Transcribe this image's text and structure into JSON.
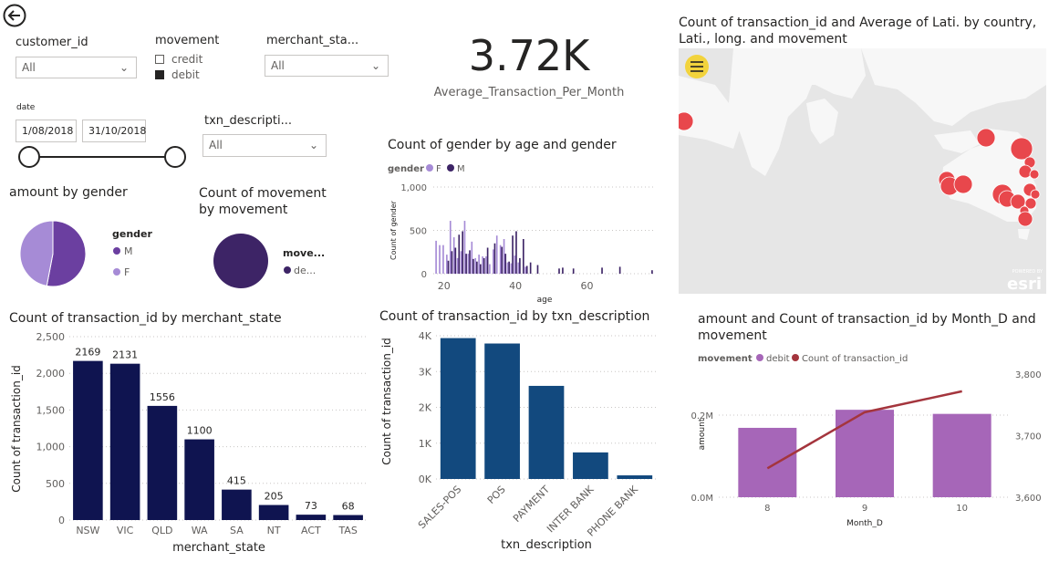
{
  "slicers": {
    "customer_id": {
      "label": "customer_id",
      "value": "All"
    },
    "movement": {
      "label": "movement",
      "options": [
        {
          "label": "credit",
          "checked": false
        },
        {
          "label": "debit",
          "checked": true
        }
      ]
    },
    "merchant_state": {
      "label": "merchant_sta...",
      "value": "All"
    },
    "date": {
      "label": "date",
      "start": "1/08/2018",
      "end": "31/10/2018"
    },
    "txn_description": {
      "label": "txn_descripti...",
      "value": "All"
    }
  },
  "card": {
    "value": "3.72K",
    "label": "Average_Transaction_Per_Month"
  },
  "map": {
    "title": "Count of transaction_id and Average of Lati. by country, Lati., long. and movement",
    "attribution": "esri",
    "attribution_top": "POWERED BY"
  },
  "colors": {
    "navy": "#0f1450",
    "blue": "#12497e",
    "purple_dark": "#3d2466",
    "purple_light": "#a68bd6",
    "purple_mid": "#6b3fa0",
    "violet": "#a666b8",
    "line_red": "#a4353d",
    "map_dot": "#e8474c"
  },
  "chart_data": [
    {
      "type": "pie",
      "title": "amount by gender",
      "legend_title": "gender",
      "slices": [
        {
          "name": "M",
          "value": 53
        },
        {
          "name": "F",
          "value": 47
        }
      ]
    },
    {
      "type": "pie",
      "title": "Count of movement by movement",
      "legend_title": "move...",
      "slices": [
        {
          "name": "de...",
          "value": 100
        }
      ]
    },
    {
      "type": "bar",
      "title": "Count of gender by age and gender",
      "legend_title": "gender",
      "legend": [
        "F",
        "M"
      ],
      "xlabel": "age",
      "ylabel": "Count of gender",
      "xlim": [
        17,
        79
      ],
      "ylim": [
        0,
        1000
      ],
      "yticks": [
        0,
        500,
        1000
      ],
      "ytick_labels": [
        "0",
        "500",
        "1,000"
      ],
      "xticks": [
        20,
        40,
        60
      ],
      "ages": [
        18,
        19,
        20,
        21,
        22,
        23,
        24,
        25,
        26,
        27,
        28,
        29,
        30,
        31,
        32,
        33,
        34,
        35,
        36,
        37,
        38,
        39,
        40,
        41,
        42,
        43,
        44,
        45,
        46,
        49,
        50,
        52,
        53,
        56,
        64,
        69,
        78
      ],
      "series": [
        {
          "name": "F",
          "values": [
            380,
            330,
            330,
            220,
            610,
            420,
            180,
            260,
            610,
            230,
            370,
            180,
            220,
            200,
            200,
            110,
            280,
            440,
            330,
            400,
            130,
            120,
            210,
            130,
            0,
            80,
            0,
            0,
            0,
            0,
            0,
            0,
            0,
            0,
            0,
            0,
            0
          ]
        },
        {
          "name": "M",
          "values": [
            0,
            0,
            0,
            150,
            260,
            300,
            450,
            490,
            230,
            270,
            170,
            140,
            110,
            180,
            300,
            0,
            350,
            0,
            310,
            230,
            140,
            440,
            490,
            180,
            400,
            90,
            130,
            0,
            100,
            0,
            0,
            60,
            70,
            60,
            70,
            80,
            40
          ]
        }
      ]
    },
    {
      "type": "bar",
      "title": "Count of transaction_id by merchant_state",
      "xlabel": "merchant_state",
      "ylabel": "Count of transaction_id",
      "ylim": [
        0,
        2500
      ],
      "yticks": [
        0,
        500,
        1000,
        1500,
        2000,
        2500
      ],
      "ytick_labels": [
        "0",
        "500",
        "1,000",
        "1,500",
        "2,000",
        "2,500"
      ],
      "categories": [
        "NSW",
        "VIC",
        "QLD",
        "WA",
        "SA",
        "NT",
        "ACT",
        "TAS"
      ],
      "values": [
        2169,
        2131,
        1556,
        1100,
        415,
        205,
        73,
        68
      ]
    },
    {
      "type": "bar",
      "title": "Count of transaction_id by txn_description",
      "xlabel": "txn_description",
      "ylabel": "Count of transaction_id",
      "ylim": [
        0,
        4000
      ],
      "yticks": [
        0,
        1000,
        2000,
        3000,
        4000
      ],
      "ytick_labels": [
        "0K",
        "1K",
        "2K",
        "3K",
        "4K"
      ],
      "categories": [
        "SALES-POS",
        "POS",
        "PAYMENT",
        "INTER BANK",
        "PHONE BANK"
      ],
      "values": [
        3934,
        3783,
        2600,
        742,
        101
      ]
    },
    {
      "type": "bar",
      "title": "amount and Count of transaction_id by Month_D and movement",
      "legend_title": "movement",
      "xlabel": "Month_D",
      "ylabel": "amount",
      "categories": [
        "8",
        "9",
        "10"
      ],
      "bar_series": {
        "name": "debit",
        "values": [
          169000,
          213000,
          203000
        ]
      },
      "ylim": [
        0,
        300000
      ],
      "yticks": [
        0,
        200000
      ],
      "ytick_labels": [
        "0.0M",
        "0.2M"
      ],
      "line_series": {
        "name": "Count of transaction_id",
        "values": [
          3647,
          3738,
          3772
        ]
      },
      "y2lim": [
        3600,
        3800
      ],
      "y2ticks": [
        3600,
        3700,
        3800
      ],
      "y2tick_labels": [
        "3,600",
        "3,700",
        "3,800"
      ]
    }
  ]
}
